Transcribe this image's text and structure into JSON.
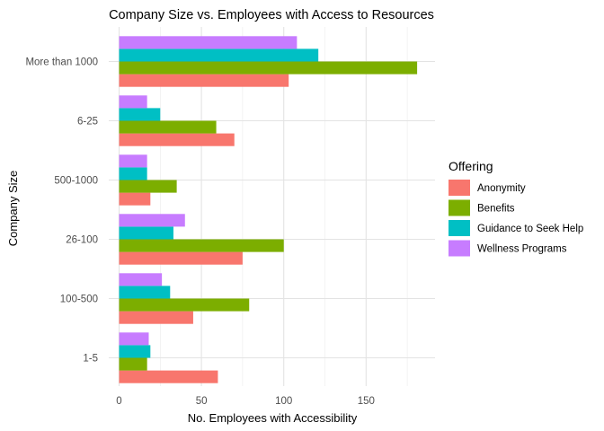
{
  "chart_data": {
    "type": "bar",
    "orientation": "horizontal",
    "title": "Company Size vs. Employees with Access to Resources",
    "xlabel": "No. Employees with Accessibility",
    "ylabel": "Company Size",
    "xlim": [
      0,
      190
    ],
    "xticks": [
      0,
      50,
      100,
      150
    ],
    "grid": true,
    "legend_title": "Offering",
    "legend_position": "right",
    "categories": [
      "1-5",
      "100-500",
      "26-100",
      "500-1000",
      "6-25",
      "More than 1000"
    ],
    "series": [
      {
        "name": "Anonymity",
        "color": "#F8766D",
        "values": [
          60,
          45,
          75,
          19,
          70,
          103
        ]
      },
      {
        "name": "Benefits",
        "color": "#7CAE00",
        "values": [
          17,
          79,
          100,
          35,
          59,
          181
        ]
      },
      {
        "name": "Guidance to Seek Help",
        "color": "#00BFC4",
        "values": [
          19,
          31,
          33,
          17,
          25,
          121
        ]
      },
      {
        "name": "Wellness Programs",
        "color": "#C77CFF",
        "values": [
          18,
          26,
          40,
          17,
          17,
          108
        ]
      }
    ]
  }
}
